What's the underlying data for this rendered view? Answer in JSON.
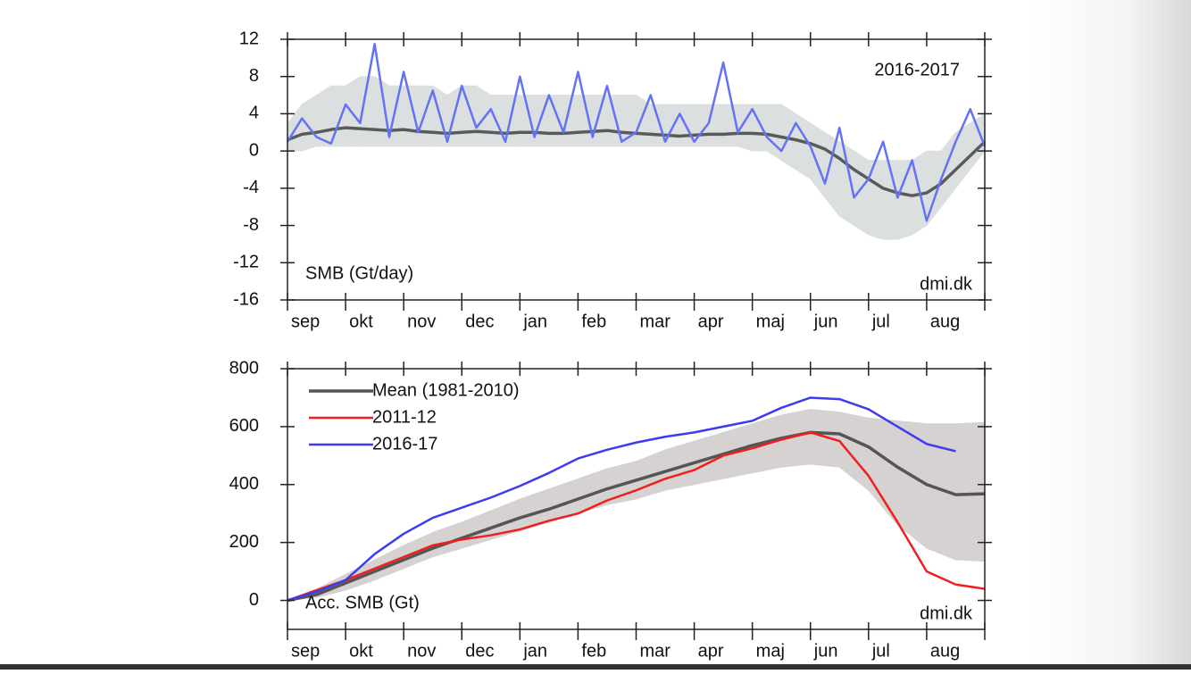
{
  "chart_data": [
    {
      "type": "line",
      "annotation": "2016-2017",
      "ylabel": "SMB (Gt/day)",
      "watermark": "dmi.dk",
      "categories": [
        "sep",
        "okt",
        "nov",
        "dec",
        "jan",
        "feb",
        "mar",
        "apr",
        "maj",
        "jun",
        "jul",
        "aug"
      ],
      "xlim": [
        0,
        12
      ],
      "xticks": [
        0,
        1,
        2,
        3,
        4,
        5,
        6,
        7,
        8,
        9,
        10,
        11,
        12
      ],
      "ylim": [
        -16,
        12
      ],
      "yticks": [
        -16,
        -12,
        -8,
        -4,
        0,
        4,
        8,
        12
      ],
      "x": [
        0,
        0.25,
        0.5,
        0.75,
        1,
        1.25,
        1.5,
        1.75,
        2,
        2.25,
        2.5,
        2.75,
        3,
        3.25,
        3.5,
        3.75,
        4,
        4.25,
        4.5,
        4.75,
        5,
        5.25,
        5.5,
        5.75,
        6,
        6.25,
        6.5,
        6.75,
        7,
        7.25,
        7.5,
        7.75,
        8,
        8.25,
        8.5,
        8.75,
        9,
        9.25,
        9.5,
        9.75,
        10,
        10.25,
        10.5,
        10.75,
        11,
        11.25,
        11.5,
        11.75,
        12
      ],
      "band": {
        "color": "#dcdfe0",
        "low": [
          0,
          0,
          0.5,
          0.5,
          0.5,
          0.5,
          0.5,
          0.5,
          0.5,
          0.5,
          0.5,
          0.5,
          0.5,
          0.5,
          0.5,
          0.5,
          0.5,
          0.5,
          0.5,
          0.5,
          0.5,
          0.5,
          0.5,
          0.5,
          0.5,
          0.5,
          0.5,
          0.5,
          0.5,
          0.5,
          0.5,
          0.5,
          0,
          0,
          -1,
          -2,
          -3,
          -5,
          -7,
          -8,
          -9,
          -9.5,
          -9.5,
          -9,
          -8,
          -6,
          -4,
          -2,
          0
        ],
        "high": [
          3,
          5,
          6,
          7,
          7,
          8,
          8,
          7,
          7,
          7,
          7,
          6,
          7,
          7,
          6,
          6,
          6,
          6,
          6,
          6,
          6,
          6,
          6,
          6,
          6,
          5,
          5,
          5,
          5,
          5,
          5,
          5,
          5,
          5,
          5,
          4,
          3,
          2,
          1,
          0,
          -1,
          -1,
          -1,
          -1,
          0,
          0,
          2,
          3,
          4
        ]
      },
      "series": [
        {
          "color": "#5a5a5a",
          "width": 3.5,
          "values": [
            1.2,
            1.8,
            2.0,
            2.3,
            2.5,
            2.4,
            2.3,
            2.2,
            2.3,
            2.1,
            2.0,
            1.9,
            2.0,
            2.1,
            2.0,
            1.9,
            2.0,
            2.0,
            1.9,
            1.9,
            2.0,
            2.1,
            2.2,
            2.0,
            1.9,
            1.8,
            1.7,
            1.6,
            1.7,
            1.8,
            1.8,
            1.9,
            1.9,
            1.8,
            1.5,
            1.2,
            0.8,
            0.2,
            -0.8,
            -2.0,
            -3.0,
            -4.0,
            -4.5,
            -4.8,
            -4.5,
            -3.5,
            -2.0,
            -0.5,
            1.0
          ]
        },
        {
          "color": "#6473f2",
          "width": 2.5,
          "values": [
            1.0,
            3.5,
            1.5,
            0.8,
            5.0,
            3.0,
            11.5,
            1.5,
            8.5,
            2.0,
            6.5,
            1.0,
            7.0,
            2.5,
            4.5,
            1.0,
            8.0,
            1.5,
            6.0,
            2.0,
            8.5,
            1.5,
            7.0,
            1.0,
            2.0,
            6.0,
            1.0,
            4.0,
            1.0,
            3.0,
            9.5,
            2.0,
            4.5,
            1.5,
            0.0,
            3.0,
            0.5,
            -3.5,
            2.5,
            -5.0,
            -3.0,
            1.0,
            -5.0,
            -1.0,
            -7.5,
            -3.0,
            1.0,
            4.5,
            0.5
          ]
        }
      ]
    },
    {
      "type": "line",
      "ylabel": "Acc. SMB (Gt)",
      "watermark": "dmi.dk",
      "legend": "upper left",
      "categories": [
        "sep",
        "okt",
        "nov",
        "dec",
        "jan",
        "feb",
        "mar",
        "apr",
        "maj",
        "jun",
        "jul",
        "aug"
      ],
      "xlim": [
        0,
        12
      ],
      "xticks": [
        0,
        1,
        2,
        3,
        4,
        5,
        6,
        7,
        8,
        9,
        10,
        11,
        12
      ],
      "ylim": [
        -100,
        800
      ],
      "yticks": [
        0,
        200,
        400,
        600,
        800
      ],
      "x": [
        0,
        0.5,
        1,
        1.5,
        2,
        2.5,
        3,
        3.5,
        4,
        4.5,
        5,
        5.5,
        6,
        6.5,
        7,
        7.5,
        8,
        8.5,
        9,
        9.5,
        10,
        10.5,
        11,
        11.5,
        12
      ],
      "band": {
        "color": "#d6d2d2",
        "low": [
          0,
          10,
          35,
          70,
          110,
          150,
          180,
          210,
          240,
          270,
          300,
          330,
          350,
          380,
          400,
          420,
          440,
          460,
          470,
          460,
          380,
          260,
          180,
          140,
          135
        ],
        "high": [
          0,
          40,
          90,
          140,
          190,
          235,
          270,
          310,
          350,
          385,
          420,
          455,
          480,
          520,
          550,
          580,
          610,
          640,
          660,
          650,
          630,
          620,
          610,
          610,
          615
        ]
      },
      "series": [
        {
          "name": "Mean (1981-2010)",
          "color": "#555555",
          "width": 3.5,
          "values": [
            0,
            20,
            60,
            100,
            140,
            180,
            215,
            250,
            285,
            315,
            350,
            385,
            415,
            445,
            475,
            505,
            535,
            560,
            580,
            575,
            530,
            460,
            400,
            365,
            368
          ]
        },
        {
          "name": "2011-12",
          "color": "#f01e1e",
          "width": 2.5,
          "values": [
            0,
            35,
            70,
            110,
            150,
            190,
            210,
            225,
            245,
            275,
            300,
            345,
            380,
            420,
            450,
            500,
            525,
            555,
            580,
            550,
            430,
            270,
            100,
            55,
            40
          ]
        },
        {
          "name": "2016-17",
          "color": "#3c3cf0",
          "width": 2.5,
          "values": [
            0,
            30,
            70,
            160,
            230,
            285,
            320,
            355,
            395,
            440,
            490,
            520,
            545,
            565,
            580,
            600,
            620,
            665,
            700,
            695,
            660,
            600,
            540,
            515,
            null
          ]
        }
      ]
    }
  ]
}
